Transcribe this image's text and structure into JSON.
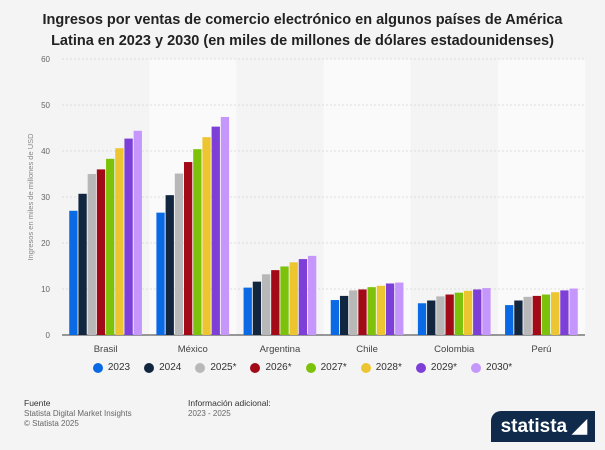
{
  "chart_data": {
    "type": "bar",
    "title": "Ingresos por ventas de comercio electrónico en algunos países de América Latina en 2023 y 2030 (en miles de millones de dólares estadounidenses)",
    "ylabel": "Ingresos en miles de millones de USD",
    "xlabel": "",
    "ylim": [
      0,
      60
    ],
    "yticks": [
      "0",
      "10",
      "20",
      "30",
      "40",
      "50",
      "60"
    ],
    "categories": [
      "Brasil",
      "México",
      "Argentina",
      "Chile",
      "Colombia",
      "Perú"
    ],
    "series": [
      {
        "name": "2023",
        "color": "#0a6ae6",
        "values": [
          27.0,
          26.6,
          10.3,
          7.6,
          6.9,
          6.5
        ]
      },
      {
        "name": "2024",
        "color": "#12263f",
        "values": [
          30.7,
          30.4,
          11.6,
          8.5,
          7.5,
          7.5
        ]
      },
      {
        "name": "2025*",
        "color": "#b8b8b8",
        "values": [
          35.0,
          35.1,
          13.2,
          9.7,
          8.4,
          8.3
        ]
      },
      {
        "name": "2026*",
        "color": "#a10a16",
        "values": [
          36.0,
          37.6,
          14.1,
          9.9,
          8.8,
          8.5
        ]
      },
      {
        "name": "2027*",
        "color": "#7dc20a",
        "values": [
          38.3,
          40.4,
          14.9,
          10.4,
          9.2,
          8.8
        ]
      },
      {
        "name": "2028*",
        "color": "#ecc530",
        "values": [
          40.6,
          43.0,
          15.8,
          10.7,
          9.6,
          9.3
        ]
      },
      {
        "name": "2029*",
        "color": "#7d3fd8",
        "values": [
          42.7,
          45.3,
          16.5,
          11.2,
          9.9,
          9.7
        ]
      },
      {
        "name": "2030*",
        "color": "#c596fb",
        "values": [
          44.4,
          47.4,
          17.2,
          11.4,
          10.2,
          10.1
        ]
      }
    ],
    "grid": true,
    "legend": "bottom"
  },
  "footer": {
    "source_label": "Fuente",
    "source_lines": [
      "Statista Digital Market Insights",
      "© Statista 2025"
    ],
    "info_label": "Información adicional:",
    "info_value": "2023 - 2025",
    "logo": "statista"
  }
}
